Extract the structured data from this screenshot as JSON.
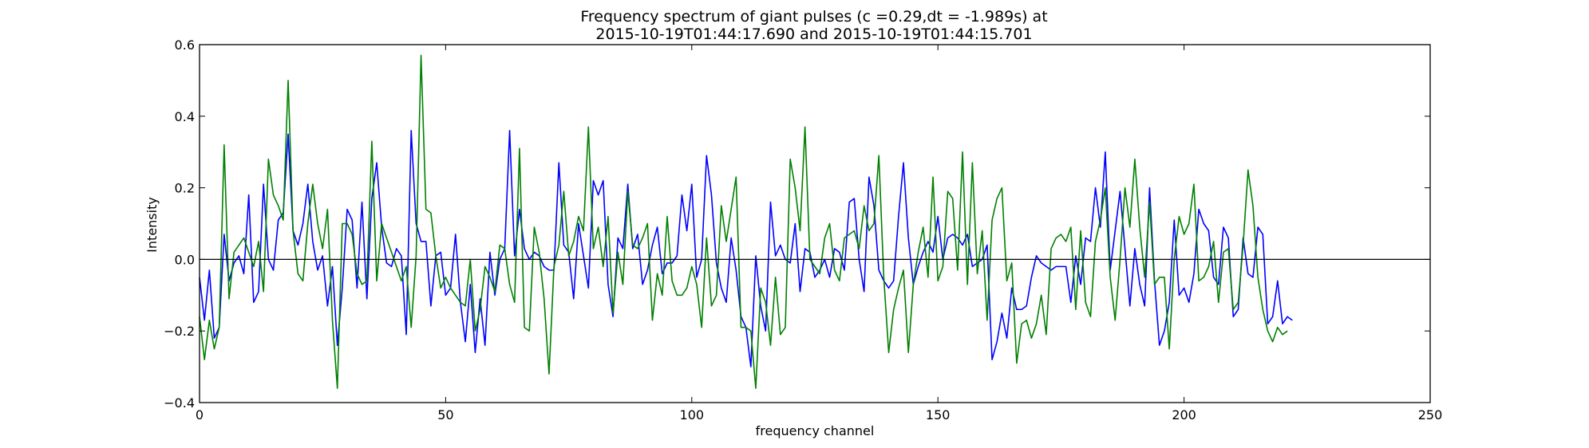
{
  "chart_data": {
    "type": "line",
    "title_line1": "Frequency spectrum of giant pulses (c =0.29,dt = -1.989s) at",
    "title_line2": "2015-10-19T01:44:17.690 and 2015-10-19T01:44:15.701",
    "xlabel": "frequency channel",
    "ylabel": "Intensity",
    "xlim": [
      0,
      250
    ],
    "ylim": [
      -0.4,
      0.6
    ],
    "xticks": [
      0,
      50,
      100,
      150,
      200,
      250
    ],
    "xtick_labels": [
      "0",
      "50",
      "100",
      "150",
      "200",
      "250"
    ],
    "yticks": [
      -0.4,
      -0.2,
      0.0,
      0.2,
      0.4,
      0.6
    ],
    "ytick_labels": [
      "−0.4",
      "−0.2",
      "0.0",
      "0.2",
      "0.4",
      "0.6"
    ],
    "hline": 0.0,
    "grid": false,
    "colors": {
      "series_blue": "#0000ff",
      "series_green": "#008000",
      "axis": "#000000"
    },
    "series": [
      {
        "color": "#0000ff",
        "values": [
          -0.05,
          -0.17,
          -0.03,
          -0.22,
          -0.19,
          0.07,
          -0.06,
          -0.01,
          0.01,
          -0.04,
          0.18,
          -0.12,
          -0.09,
          0.21,
          0.0,
          -0.03,
          0.11,
          0.13,
          0.35,
          0.08,
          0.04,
          0.1,
          0.21,
          0.05,
          -0.03,
          0.01,
          -0.13,
          -0.02,
          -0.24,
          -0.08,
          0.14,
          0.11,
          -0.08,
          0.16,
          -0.11,
          0.17,
          0.27,
          0.09,
          -0.01,
          -0.02,
          0.03,
          0.01,
          -0.21,
          0.36,
          0.1,
          0.05,
          0.05,
          -0.13,
          0.01,
          0.02,
          -0.1,
          -0.08,
          0.07,
          -0.12,
          -0.23,
          -0.07,
          -0.26,
          -0.11,
          -0.24,
          0.02,
          -0.1,
          0.0,
          0.03,
          0.36,
          0.01,
          0.14,
          0.03,
          0.0,
          0.02,
          0.01,
          -0.02,
          -0.03,
          -0.03,
          0.27,
          0.04,
          0.02,
          -0.11,
          0.1,
          0.01,
          -0.08,
          0.22,
          0.18,
          0.22,
          -0.07,
          -0.16,
          0.06,
          0.03,
          0.21,
          0.03,
          0.07,
          -0.07,
          -0.03,
          0.04,
          0.09,
          -0.04,
          -0.01,
          -0.01,
          0.01,
          0.18,
          0.08,
          0.21,
          -0.05,
          0.0,
          0.29,
          0.18,
          -0.01,
          -0.08,
          -0.12,
          0.06,
          -0.03,
          -0.16,
          -0.19,
          -0.3,
          0.01,
          -0.13,
          -0.2,
          0.16,
          0.01,
          0.04,
          0.0,
          -0.01,
          0.1,
          -0.09,
          0.03,
          0.02,
          -0.05,
          -0.03,
          0.0,
          -0.05,
          0.03,
          0.02,
          -0.03,
          0.16,
          0.17,
          0.0,
          -0.09,
          0.23,
          0.15,
          -0.03,
          -0.06,
          -0.08,
          -0.06,
          0.12,
          0.27,
          0.06,
          -0.07,
          -0.02,
          0.02,
          0.05,
          0.02,
          0.12,
          0.0,
          0.06,
          0.07,
          0.06,
          0.04,
          0.07,
          -0.02,
          -0.01,
          0.0,
          0.04,
          -0.28,
          -0.23,
          -0.15,
          -0.22,
          -0.08,
          -0.14,
          -0.14,
          -0.13,
          -0.05,
          0.01,
          -0.01,
          -0.02,
          -0.03,
          -0.02,
          -0.02,
          -0.02,
          -0.12,
          0.01,
          -0.07,
          0.06,
          0.05,
          0.2,
          0.09,
          0.3,
          -0.03,
          0.08,
          0.19,
          0.03,
          -0.13,
          0.03,
          -0.07,
          -0.13,
          0.2,
          -0.06,
          -0.24,
          -0.2,
          -0.12,
          0.11,
          -0.1,
          -0.08,
          -0.12,
          -0.04,
          0.14,
          0.1,
          0.08,
          -0.05,
          -0.07,
          0.09,
          0.06,
          -0.16,
          -0.14,
          0.06,
          -0.04,
          -0.05,
          0.09,
          0.07,
          -0.18,
          -0.16,
          -0.06,
          -0.18,
          -0.16,
          -0.17
        ]
      },
      {
        "color": "#008000",
        "values": [
          -0.16,
          -0.28,
          -0.17,
          -0.25,
          -0.19,
          0.32,
          -0.11,
          0.02,
          0.04,
          0.06,
          0.02,
          -0.02,
          0.05,
          -0.09,
          0.28,
          0.18,
          0.15,
          0.11,
          0.5,
          0.08,
          -0.04,
          -0.06,
          0.1,
          0.21,
          0.1,
          0.03,
          0.14,
          -0.17,
          -0.36,
          0.1,
          0.1,
          0.07,
          -0.04,
          -0.07,
          -0.06,
          0.33,
          -0.06,
          0.1,
          0.06,
          0.02,
          -0.02,
          -0.06,
          -0.02,
          -0.19,
          0.01,
          0.57,
          0.14,
          0.13,
          0.01,
          -0.08,
          -0.05,
          -0.08,
          -0.1,
          -0.12,
          -0.13,
          0.0,
          -0.2,
          -0.14,
          -0.02,
          -0.05,
          -0.09,
          0.04,
          0.03,
          -0.07,
          -0.12,
          0.31,
          -0.19,
          -0.2,
          0.09,
          0.02,
          -0.11,
          -0.32,
          -0.02,
          0.04,
          0.19,
          0.01,
          0.05,
          0.12,
          0.08,
          0.37,
          0.03,
          0.09,
          -0.02,
          0.12,
          -0.15,
          0.02,
          -0.07,
          0.19,
          0.04,
          0.03,
          0.06,
          0.1,
          -0.17,
          -0.04,
          -0.1,
          0.12,
          -0.06,
          -0.1,
          -0.1,
          -0.08,
          -0.02,
          -0.07,
          -0.19,
          0.06,
          -0.13,
          -0.1,
          0.15,
          0.05,
          0.14,
          0.23,
          -0.19,
          -0.19,
          -0.2,
          -0.36,
          -0.08,
          -0.12,
          -0.24,
          -0.05,
          -0.21,
          -0.19,
          0.28,
          0.2,
          0.08,
          0.37,
          0.0,
          -0.02,
          -0.04,
          0.06,
          0.1,
          -0.03,
          -0.06,
          0.06,
          0.07,
          0.08,
          0.03,
          0.15,
          0.08,
          0.1,
          0.29,
          -0.05,
          -0.26,
          -0.14,
          -0.08,
          -0.03,
          -0.26,
          -0.07,
          0.02,
          0.09,
          -0.05,
          0.23,
          -0.06,
          -0.02,
          0.19,
          0.17,
          -0.03,
          0.3,
          -0.07,
          0.27,
          -0.04,
          0.08,
          -0.17,
          0.11,
          0.17,
          0.2,
          -0.06,
          -0.01,
          -0.29,
          -0.18,
          -0.17,
          -0.22,
          -0.18,
          -0.1,
          -0.21,
          0.03,
          0.06,
          0.07,
          0.05,
          0.09,
          -0.14,
          0.08,
          -0.12,
          -0.16,
          0.05,
          0.11,
          0.2,
          -0.05,
          -0.17,
          0.0,
          0.2,
          0.09,
          0.28,
          0.09,
          -0.05,
          0.16,
          -0.07,
          -0.05,
          -0.05,
          -0.25,
          0.0,
          0.12,
          0.07,
          0.1,
          0.21,
          -0.06,
          -0.05,
          -0.02,
          0.05,
          -0.12,
          0.02,
          0.03,
          -0.14,
          -0.12,
          0.04,
          0.25,
          0.15,
          -0.05,
          -0.14,
          -0.2,
          -0.23,
          -0.19,
          -0.21,
          -0.2
        ]
      }
    ]
  }
}
